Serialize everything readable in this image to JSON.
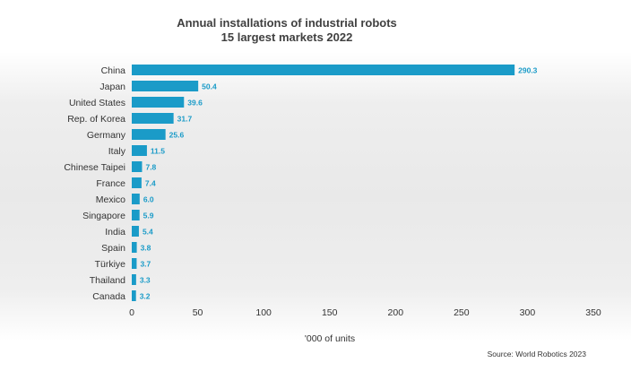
{
  "chart_data": {
    "type": "bar",
    "orientation": "horizontal",
    "title": "Annual installations of industrial robots",
    "subtitle": "15 largest markets 2022",
    "categories": [
      "China",
      "Japan",
      "United States",
      "Rep. of Korea",
      "Germany",
      "Italy",
      "Chinese Taipei",
      "France",
      "Mexico",
      "Singapore",
      "India",
      "Spain",
      "Türkiye",
      "Thailand",
      "Canada"
    ],
    "values": [
      290.3,
      50.4,
      39.6,
      31.7,
      25.6,
      11.5,
      7.8,
      7.4,
      6.0,
      5.9,
      5.4,
      3.8,
      3.7,
      3.3,
      3.2
    ],
    "value_labels": [
      "290.3",
      "50.4",
      "39.6",
      "31.7",
      "25.6",
      "11.5",
      "7.8",
      "7.4",
      "6.0",
      "5.9",
      "5.4",
      "3.8",
      "3.7",
      "3.3",
      "3.2"
    ],
    "xlabel": "'000 of units",
    "xlim": [
      0,
      350
    ],
    "xticks": [
      0,
      50,
      100,
      150,
      200,
      250,
      300,
      350
    ],
    "grid": false,
    "bar_color": "#1a9bc8",
    "source": "Source: World Robotics 2023"
  }
}
